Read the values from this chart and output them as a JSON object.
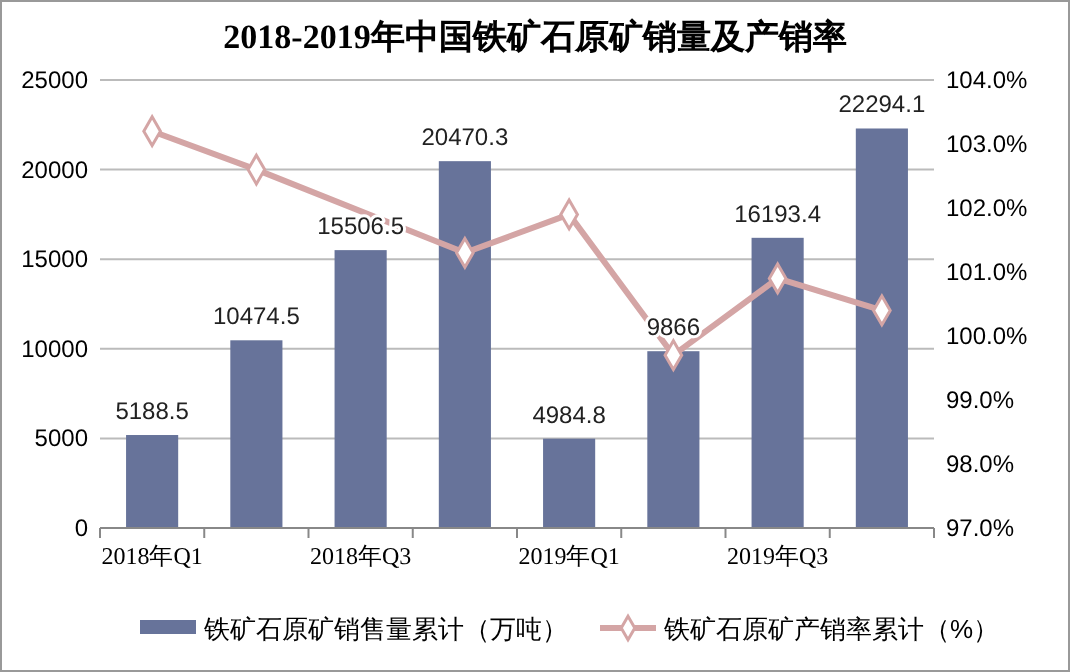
{
  "chart_data": {
    "type": "bar",
    "title": "2018-2019年中国铁矿石原矿销量及产销率",
    "categories": [
      "2018年Q1",
      null,
      "2018年Q3",
      null,
      "2019年Q1",
      null,
      "2019年Q3",
      null
    ],
    "series": [
      {
        "name": "铁矿石原矿销售量累计（万吨）",
        "color": "#67739a",
        "values": [
          5188.5,
          10474.5,
          15506.5,
          20470.3,
          4984.8,
          9866,
          16193.4,
          22294.1
        ],
        "data_labels": true
      },
      {
        "name": "铁矿石原矿产销率累计（%）",
        "type": "line",
        "axis": "y2",
        "color": "#d4a5a5",
        "marker": "diamond",
        "values": [
          103.2,
          102.6,
          null,
          101.3,
          101.9,
          99.7,
          100.9,
          100.4
        ]
      }
    ],
    "ylim": [
      0,
      25000
    ],
    "yticks": [
      0,
      5000,
      10000,
      15000,
      20000,
      25000
    ],
    "y2lim": [
      97,
      104
    ],
    "y2ticks": [
      {
        "value": 97,
        "label": "97.0%"
      },
      {
        "value": 98,
        "label": "98.0%"
      },
      {
        "value": 99,
        "label": "99.0%"
      },
      {
        "value": 100,
        "label": "100.0%"
      },
      {
        "value": 101,
        "label": "101.0%"
      },
      {
        "value": 102,
        "label": "102.0%"
      },
      {
        "value": 103,
        "label": "103.0%"
      },
      {
        "value": 104,
        "label": "104.0%"
      }
    ],
    "grid": "y",
    "legend": "bottom"
  }
}
